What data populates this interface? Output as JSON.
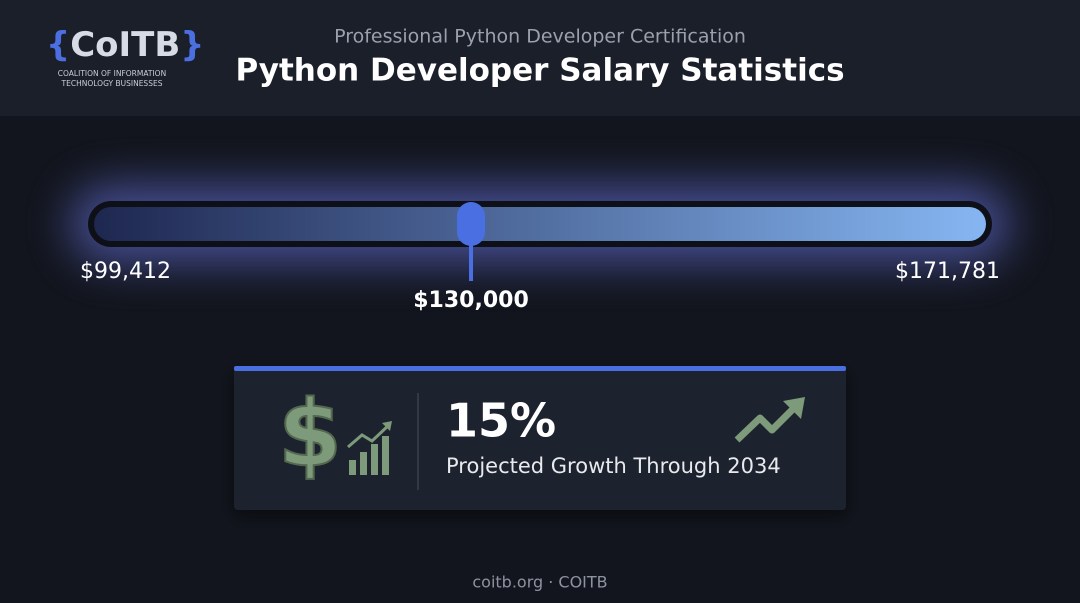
{
  "logo": {
    "open": "{",
    "name": "CoITB",
    "close": "}",
    "line1": "COALITION OF INFORMATION",
    "line2": "TECHNOLOGY BUSINESSES"
  },
  "header": {
    "subtitle": "Professional Python Developer Certification",
    "title": "Python Developer Salary Statistics"
  },
  "salary": {
    "min": {
      "value": 99412,
      "label": "$99,412"
    },
    "median": {
      "value": 130000,
      "label": "$130,000"
    },
    "max": {
      "value": 171781,
      "label": "$171,781"
    }
  },
  "growth": {
    "value": "15%",
    "caption": "Projected Growth Through 2034"
  },
  "footer": "coitb.org · COITB"
}
